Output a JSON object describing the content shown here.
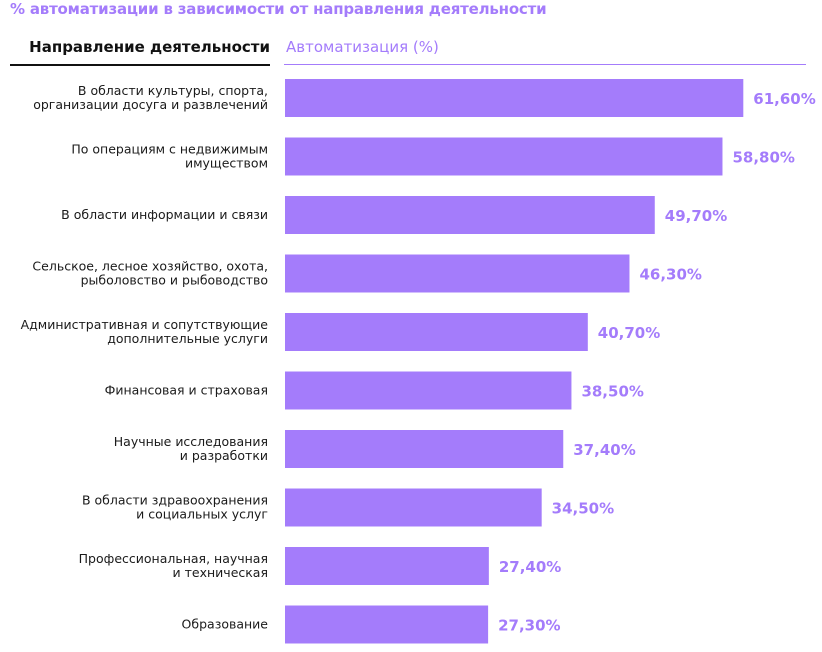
{
  "chart_data": {
    "type": "bar",
    "orientation": "horizontal",
    "title": "% автоматизации в зависимости от направления деятельности",
    "category_header": "Направление деятельности",
    "value_header": "Автоматизация (%)",
    "categories": [
      [
        "В области культуры, спорта,",
        "организации досуга и развлечений"
      ],
      [
        "По операциям с недвижимым",
        "имуществом"
      ],
      [
        "В области информации и связи"
      ],
      [
        "Сельское, лесное хозяйство, охота,",
        "рыболовство и рыбоводство"
      ],
      [
        "Административная и сопутствующие",
        "дополнительные услуги"
      ],
      [
        "Финансовая и страховая"
      ],
      [
        "Научные исследования",
        "и разработки"
      ],
      [
        "В области здравоохранения",
        "и социальных услуг"
      ],
      [
        "Профессиональная, научная",
        "и техническая"
      ],
      [
        "Образование"
      ]
    ],
    "values": [
      61.6,
      58.8,
      49.7,
      46.3,
      40.7,
      38.5,
      37.4,
      34.5,
      27.4,
      27.3
    ],
    "value_labels": [
      "61,60%",
      "58,80%",
      "49,70%",
      "46,30%",
      "40,70%",
      "38,50%",
      "37,40%",
      "34,50%",
      "27,40%",
      "27,30%"
    ],
    "bar_color": "#a47cfb",
    "label_color": "#a47cfb"
  }
}
